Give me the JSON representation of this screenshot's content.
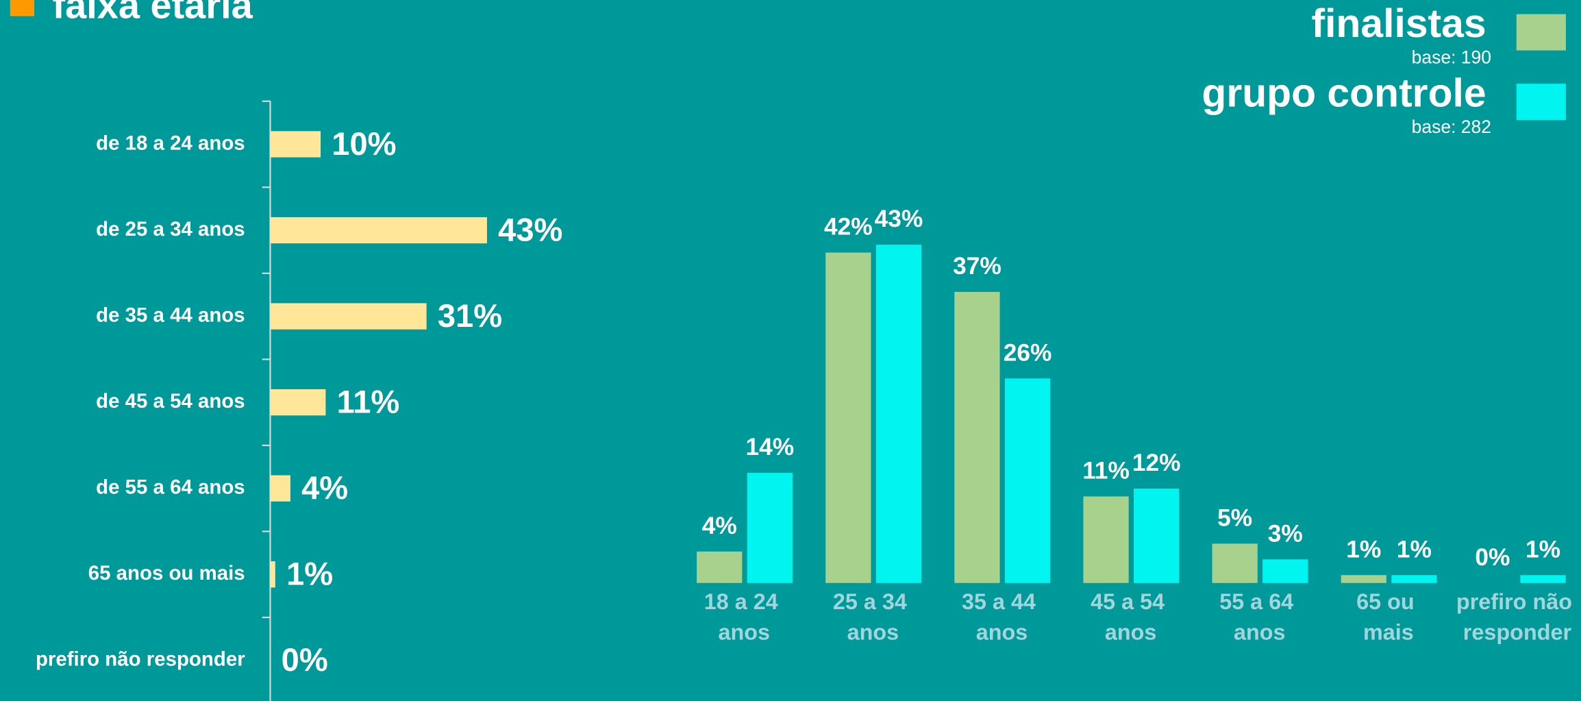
{
  "title": "faixa etária",
  "chart_data": [
    {
      "type": "hbar",
      "categories": [
        "de 18 a 24 anos",
        "de 25 a 34 anos",
        "de 35 a 44 anos",
        "de 45 a 54 anos",
        "de 55 a 64 anos",
        "65 anos ou mais",
        "prefiro não responder"
      ],
      "values": [
        10,
        43,
        31,
        11,
        4,
        1,
        0
      ],
      "value_labels": [
        "10%",
        "43%",
        "31%",
        "11%",
        "4%",
        "1%",
        "0%"
      ],
      "color": "#ffe699"
    },
    {
      "type": "bar",
      "categories": [
        "18 a 24 anos",
        "25 a 34 anos",
        "35 a 44 anos",
        "45 a 54 anos",
        "55 a 64 anos",
        "65 ou mais",
        "prefiro não responder"
      ],
      "series": [
        {
          "name": "finalistas",
          "base": "base: 190",
          "color": "#a9d18e",
          "values": [
            4,
            42,
            37,
            11,
            5,
            1,
            0
          ],
          "value_labels": [
            "4%",
            "42%",
            "37%",
            "11%",
            "5%",
            "1%",
            "0%"
          ]
        },
        {
          "name": "grupo controle",
          "base": "base: 282",
          "color": "#00f5f0",
          "values": [
            14,
            43,
            26,
            12,
            3,
            1,
            1
          ],
          "value_labels": [
            "14%",
            "43%",
            "26%",
            "12%",
            "3%",
            "1%",
            "1%"
          ]
        }
      ]
    }
  ]
}
